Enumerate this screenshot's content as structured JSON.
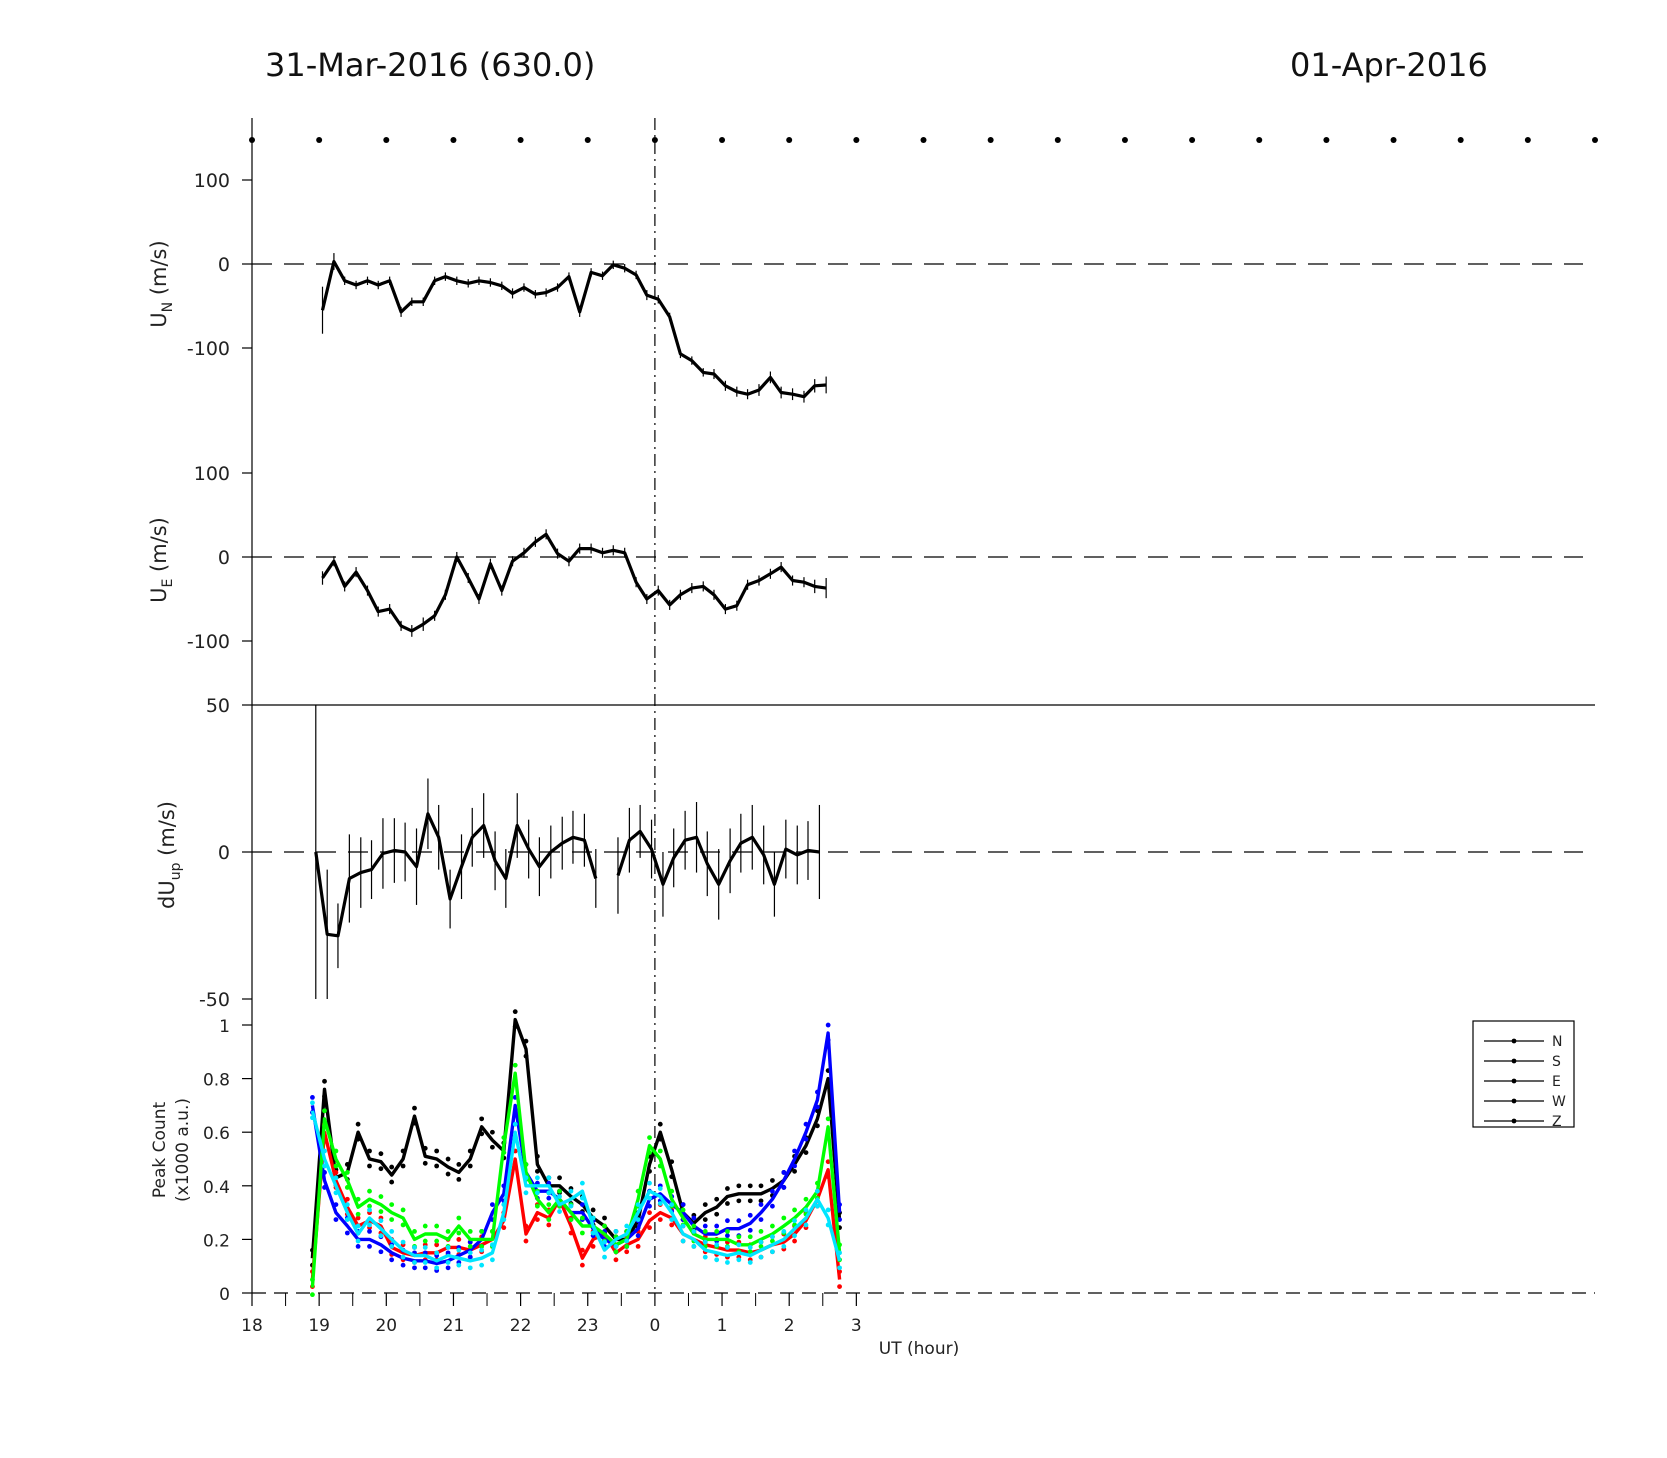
{
  "titles": {
    "left": "31-Mar-2016 (630.0)",
    "right": "01-Apr-2016"
  },
  "x_axis": {
    "label": "UT (hour)",
    "tick_labels": [
      "18",
      "19",
      "20",
      "21",
      "22",
      "23",
      "0",
      "1",
      "2",
      "3"
    ]
  },
  "panels": {
    "un": {
      "label_main": "U",
      "label_sub": "N",
      "label_unit": " (m/s)",
      "tick_labels": [
        "100",
        "0",
        "-100"
      ]
    },
    "ue": {
      "label_main": "U",
      "label_sub": "E",
      "label_unit": " (m/s)",
      "tick_labels": [
        "100",
        "0",
        "-100"
      ]
    },
    "dup": {
      "label_main": "dU",
      "label_sub": "up",
      "label_unit": " (m/s)",
      "tick_labels": [
        "50",
        "0",
        "-50"
      ]
    },
    "pc": {
      "label_line1": "Peak Count",
      "label_line2": "(x1000 a.u.)",
      "tick_labels": [
        "1",
        "0.8",
        "0.6",
        "0.4",
        "0.2",
        "0"
      ]
    }
  },
  "legend": {
    "entries": [
      "N",
      "S",
      "E",
      "W",
      "Z"
    ]
  },
  "colors": {
    "N": "#000000",
    "S": "#ff0000",
    "E": "#0000ff",
    "W": "#00ff00",
    "Z": "#00e5ff"
  },
  "chart_data": [
    {
      "type": "line",
      "ylabel": "UN (m/s)",
      "xunit": "UT hour",
      "ylim": [
        -170,
        120
      ],
      "series": [
        {
          "x": [
            19.05,
            19.22,
            19.38,
            19.55,
            19.72,
            19.88,
            20.05,
            20.22,
            20.38,
            20.55,
            20.72,
            20.88,
            21.05,
            21.22,
            21.38,
            21.55,
            21.72,
            21.88,
            22.05,
            22.22,
            22.38,
            22.55,
            22.72,
            22.88,
            23.05,
            23.22,
            23.38,
            23.55,
            23.72,
            23.88,
            24.05,
            24.22,
            24.38,
            24.55,
            24.72,
            24.88,
            25.05,
            25.22,
            25.38,
            25.55,
            25.72,
            25.88,
            26.05,
            26.22,
            26.38,
            26.55
          ],
          "y": [
            -55,
            3,
            -20,
            -25,
            -20,
            -25,
            -20,
            -57,
            -45,
            -45,
            -20,
            -15,
            -20,
            -23,
            -20,
            -22,
            -26,
            -35,
            -28,
            -36,
            -34,
            -28,
            -15,
            -57,
            -10,
            -14,
            -1,
            -5,
            -13,
            -37,
            -42,
            -63,
            -107,
            -115,
            -129,
            -131,
            -145,
            -152,
            -155,
            -150,
            -135,
            -153,
            -155,
            -158,
            -145,
            -144
          ],
          "err": [
            28,
            10,
            5,
            5,
            5,
            5,
            5,
            6,
            5,
            5,
            5,
            5,
            5,
            5,
            5,
            5,
            5,
            6,
            5,
            5,
            5,
            5,
            5,
            6,
            5,
            5,
            5,
            5,
            5,
            6,
            5,
            5,
            5,
            5,
            5,
            6,
            6,
            6,
            6,
            7,
            7,
            7,
            7,
            7,
            8,
            10
          ]
        }
      ]
    },
    {
      "type": "line",
      "ylabel": "UE (m/s)",
      "xunit": "UT hour",
      "ylim": [
        -170,
        120
      ],
      "series": [
        {
          "x": [
            19.05,
            19.22,
            19.38,
            19.55,
            19.72,
            19.88,
            20.05,
            20.22,
            20.38,
            20.55,
            20.72,
            20.88,
            21.05,
            21.22,
            21.38,
            21.55,
            21.72,
            21.88,
            22.05,
            22.22,
            22.38,
            22.55,
            22.72,
            22.88,
            23.05,
            23.22,
            23.38,
            23.55,
            23.72,
            23.88,
            24.05,
            24.22,
            24.38,
            24.55,
            24.72,
            24.88,
            25.05,
            25.22,
            25.38,
            25.55,
            25.72,
            25.88,
            26.05,
            26.22,
            26.38,
            26.55
          ],
          "y": [
            -25,
            -5,
            -35,
            -18,
            -40,
            -65,
            -62,
            -82,
            -88,
            -80,
            -70,
            -45,
            0,
            -25,
            -50,
            -8,
            -40,
            -5,
            5,
            18,
            27,
            4,
            -5,
            10,
            10,
            5,
            8,
            5,
            -30,
            -50,
            -40,
            -57,
            -45,
            -37,
            -35,
            -45,
            -62,
            -58,
            -33,
            -28,
            -20,
            -12,
            -28,
            -30,
            -35,
            -37
          ],
          "err": [
            8,
            6,
            6,
            6,
            6,
            6,
            6,
            6,
            7,
            8,
            6,
            6,
            6,
            6,
            6,
            6,
            6,
            6,
            6,
            6,
            6,
            6,
            6,
            6,
            6,
            6,
            6,
            6,
            6,
            6,
            6,
            6,
            6,
            6,
            6,
            6,
            6,
            6,
            6,
            6,
            6,
            6,
            6,
            6,
            8,
            12
          ]
        }
      ]
    },
    {
      "type": "line",
      "ylabel": "dUup (m/s)",
      "xunit": "UT hour",
      "ylim": [
        -50,
        50
      ],
      "series": [
        {
          "x": [
            18.95,
            19.12,
            19.28,
            19.45,
            19.62,
            19.78,
            19.95,
            20.12,
            20.28,
            20.45,
            20.62,
            20.78,
            20.95,
            21.12,
            21.28,
            21.45,
            21.62,
            21.78,
            21.95,
            22.12,
            22.28,
            22.45,
            22.62,
            22.78,
            22.95,
            23.12,
            null,
            23.45,
            23.62,
            23.78,
            23.95,
            24.12,
            24.28,
            24.45,
            24.62,
            24.78,
            24.95,
            25.12,
            25.28,
            25.45,
            25.62,
            25.78,
            25.95,
            26.12,
            26.28,
            26.45
          ],
          "y": [
            0,
            -28,
            -28.5,
            -9,
            -7,
            -6,
            -0.5,
            0.5,
            0,
            -5,
            13,
            5,
            -16,
            -5,
            5,
            9,
            -3,
            -9,
            9,
            1,
            -5,
            0,
            3,
            5,
            4,
            -9,
            null,
            -8,
            4,
            7,
            1,
            -11,
            -2,
            4,
            5,
            -4,
            -11,
            -3,
            3,
            5,
            -1,
            -11,
            1,
            -1,
            0.5,
            0
          ],
          "err": [
            50,
            22,
            11,
            15,
            12,
            10,
            12,
            11,
            10,
            13,
            12,
            11,
            10,
            11,
            10,
            11,
            10,
            10,
            11,
            10,
            10,
            9,
            9,
            9,
            9,
            10,
            null,
            13,
            11,
            9,
            10,
            11,
            10,
            10,
            12,
            11,
            12,
            11,
            10,
            11,
            10,
            11,
            10,
            10,
            10,
            16
          ]
        }
      ]
    },
    {
      "type": "line",
      "ylabel": "Peak Count (x1000 a.u.)",
      "xunit": "UT hour",
      "ylim": [
        0,
        1.0
      ],
      "series": [
        {
          "name": "N",
          "x": [
            18.9,
            19.08,
            19.25,
            19.42,
            19.58,
            19.75,
            19.92,
            20.08,
            20.25,
            20.42,
            20.58,
            20.75,
            20.92,
            21.08,
            21.25,
            21.42,
            21.58,
            21.75,
            21.92,
            22.08,
            22.25,
            22.42,
            22.58,
            22.75,
            22.92,
            23.08,
            23.25,
            23.42,
            23.58,
            23.75,
            23.92,
            24.08,
            24.25,
            24.42,
            24.58,
            24.75,
            24.92,
            25.08,
            25.25,
            25.42,
            25.58,
            25.75,
            25.92,
            26.08,
            26.25,
            26.42,
            26.58,
            26.75
          ],
          "y": [
            0.13,
            0.76,
            0.43,
            0.45,
            0.6,
            0.5,
            0.49,
            0.44,
            0.5,
            0.66,
            0.51,
            0.5,
            0.47,
            0.45,
            0.5,
            0.62,
            0.57,
            0.53,
            1.02,
            0.91,
            0.48,
            0.4,
            0.4,
            0.36,
            0.33,
            0.28,
            0.25,
            0.2,
            0.2,
            0.27,
            0.48,
            0.6,
            0.46,
            0.3,
            0.26,
            0.3,
            0.32,
            0.36,
            0.37,
            0.37,
            0.37,
            0.39,
            0.42,
            0.48,
            0.55,
            0.65,
            0.8,
            0.27
          ]
        },
        {
          "name": "S",
          "x": [
            18.9,
            19.08,
            19.25,
            19.42,
            19.58,
            19.75,
            19.92,
            20.08,
            20.25,
            20.42,
            20.58,
            20.75,
            20.92,
            21.08,
            21.25,
            21.42,
            21.58,
            21.75,
            21.92,
            22.08,
            22.25,
            22.42,
            22.58,
            22.75,
            22.92,
            23.08,
            23.25,
            23.42,
            23.58,
            23.75,
            23.92,
            24.08,
            24.25,
            24.42,
            24.58,
            24.75,
            24.92,
            25.08,
            25.25,
            25.42,
            25.58,
            25.75,
            25.92,
            26.08,
            26.25,
            26.42,
            26.58,
            26.75
          ],
          "y": [
            0.05,
            0.6,
            0.42,
            0.32,
            0.25,
            0.27,
            0.25,
            0.17,
            0.15,
            0.14,
            0.15,
            0.15,
            0.17,
            0.17,
            0.16,
            0.18,
            0.2,
            0.27,
            0.5,
            0.22,
            0.3,
            0.28,
            0.35,
            0.25,
            0.13,
            0.2,
            0.22,
            0.15,
            0.18,
            0.2,
            0.27,
            0.3,
            0.28,
            0.22,
            0.2,
            0.18,
            0.17,
            0.16,
            0.16,
            0.15,
            0.16,
            0.18,
            0.19,
            0.22,
            0.27,
            0.35,
            0.46,
            0.05
          ]
        },
        {
          "name": "E",
          "x": [
            18.9,
            19.08,
            19.25,
            19.42,
            19.58,
            19.75,
            19.92,
            20.08,
            20.25,
            20.42,
            20.58,
            20.75,
            20.92,
            21.08,
            21.25,
            21.42,
            21.58,
            21.75,
            21.92,
            22.08,
            22.25,
            22.42,
            22.58,
            22.75,
            22.92,
            23.08,
            23.25,
            23.42,
            23.58,
            23.75,
            23.92,
            24.08,
            24.25,
            24.42,
            24.58,
            24.75,
            24.92,
            25.08,
            25.25,
            25.42,
            25.58,
            25.75,
            25.92,
            26.08,
            26.25,
            26.42,
            26.58,
            26.75
          ],
          "y": [
            0.7,
            0.42,
            0.3,
            0.25,
            0.2,
            0.2,
            0.18,
            0.15,
            0.13,
            0.12,
            0.12,
            0.11,
            0.12,
            0.14,
            0.16,
            0.2,
            0.3,
            0.37,
            0.7,
            0.45,
            0.38,
            0.38,
            0.35,
            0.3,
            0.3,
            0.24,
            0.2,
            0.18,
            0.2,
            0.24,
            0.35,
            0.37,
            0.33,
            0.3,
            0.25,
            0.22,
            0.22,
            0.24,
            0.24,
            0.26,
            0.3,
            0.35,
            0.42,
            0.5,
            0.6,
            0.72,
            0.97,
            0.3
          ]
        },
        {
          "name": "W",
          "x": [
            18.9,
            19.08,
            19.25,
            19.42,
            19.58,
            19.75,
            19.92,
            20.08,
            20.25,
            20.42,
            20.58,
            20.75,
            20.92,
            21.08,
            21.25,
            21.42,
            21.58,
            21.75,
            21.92,
            22.08,
            22.25,
            22.42,
            22.58,
            22.75,
            22.92,
            23.08,
            23.25,
            23.42,
            23.58,
            23.75,
            23.92,
            24.08,
            24.25,
            24.42,
            24.58,
            24.75,
            24.92,
            25.08,
            25.25,
            25.42,
            25.58,
            25.75,
            25.92,
            26.08,
            26.25,
            26.42,
            26.58,
            26.75
          ],
          "y": [
            0.02,
            0.65,
            0.5,
            0.42,
            0.32,
            0.35,
            0.33,
            0.3,
            0.28,
            0.2,
            0.22,
            0.22,
            0.2,
            0.25,
            0.2,
            0.2,
            0.2,
            0.55,
            0.82,
            0.45,
            0.35,
            0.3,
            0.35,
            0.3,
            0.25,
            0.25,
            0.22,
            0.18,
            0.2,
            0.35,
            0.55,
            0.5,
            0.35,
            0.28,
            0.22,
            0.2,
            0.2,
            0.2,
            0.18,
            0.18,
            0.2,
            0.22,
            0.25,
            0.28,
            0.32,
            0.38,
            0.62,
            0.15
          ]
        },
        {
          "name": "Z",
          "x": [
            18.9,
            19.08,
            19.25,
            19.42,
            19.58,
            19.75,
            19.92,
            20.08,
            20.25,
            20.42,
            20.58,
            20.75,
            20.92,
            21.08,
            21.25,
            21.42,
            21.58,
            21.75,
            21.92,
            22.08,
            22.25,
            22.42,
            22.58,
            22.75,
            22.92,
            23.08,
            23.25,
            23.42,
            23.58,
            23.75,
            23.92,
            24.08,
            24.25,
            24.42,
            24.58,
            24.75,
            24.92,
            25.08,
            25.25,
            25.42,
            25.58,
            25.75,
            25.92,
            26.08,
            26.25,
            26.42,
            26.58,
            26.75
          ],
          "y": [
            0.68,
            0.5,
            0.4,
            0.3,
            0.22,
            0.28,
            0.24,
            0.2,
            0.16,
            0.14,
            0.14,
            0.12,
            0.14,
            0.13,
            0.12,
            0.13,
            0.15,
            0.3,
            0.6,
            0.4,
            0.4,
            0.4,
            0.33,
            0.35,
            0.38,
            0.25,
            0.16,
            0.2,
            0.22,
            0.3,
            0.38,
            0.36,
            0.3,
            0.22,
            0.2,
            0.16,
            0.15,
            0.14,
            0.15,
            0.14,
            0.16,
            0.18,
            0.2,
            0.24,
            0.28,
            0.35,
            0.28,
            0.12
          ]
        }
      ]
    }
  ]
}
